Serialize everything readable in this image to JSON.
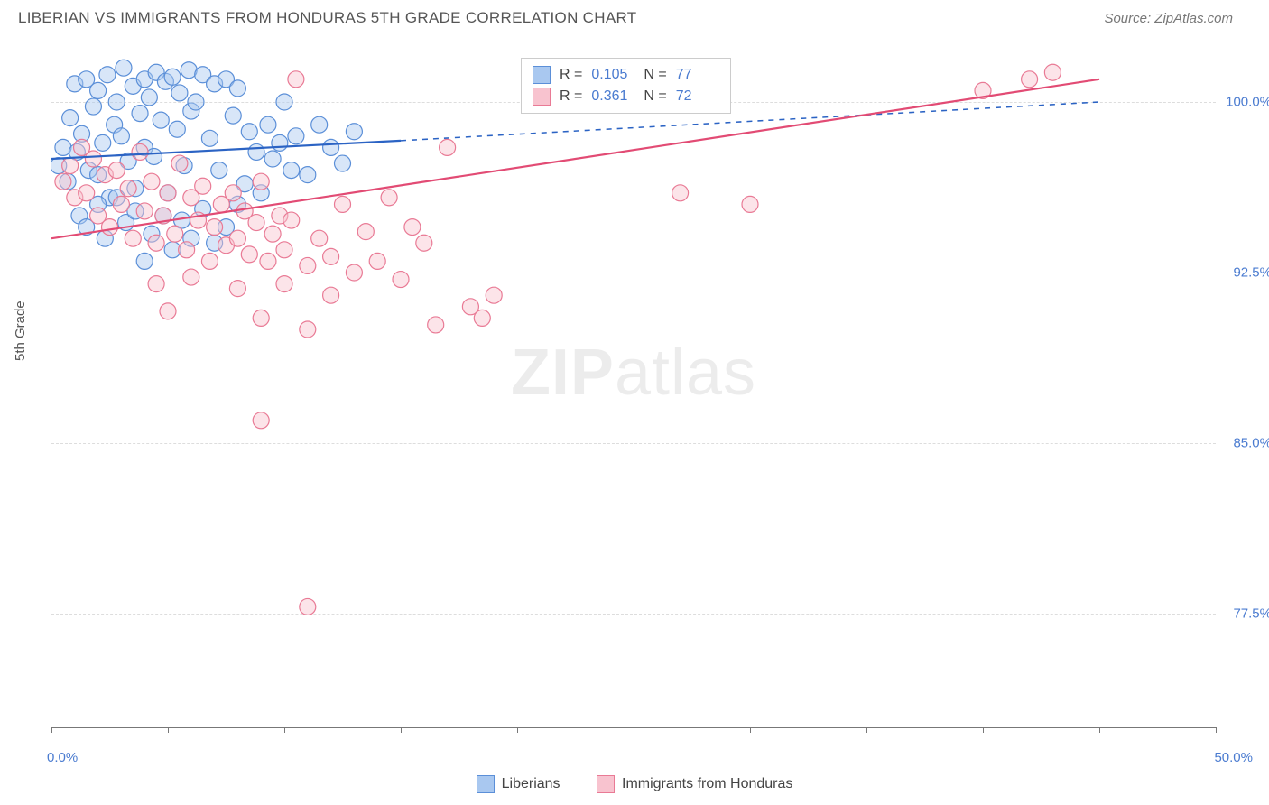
{
  "title": "LIBERIAN VS IMMIGRANTS FROM HONDURAS 5TH GRADE CORRELATION CHART",
  "source": "Source: ZipAtlas.com",
  "ylabel": "5th Grade",
  "watermark_a": "ZIP",
  "watermark_b": "atlas",
  "chart": {
    "type": "scatter",
    "xlim": [
      0,
      50
    ],
    "ylim": [
      72.5,
      102.5
    ],
    "x_ticks": [
      0,
      5,
      10,
      15,
      20,
      25,
      30,
      35,
      40,
      45,
      50
    ],
    "x_tick_labels": {
      "0": "0.0%",
      "50": "50.0%"
    },
    "y_gridlines": [
      77.5,
      85.0,
      92.5,
      100.0
    ],
    "y_tick_labels": [
      "77.5%",
      "85.0%",
      "92.5%",
      "100.0%"
    ],
    "background_color": "#ffffff",
    "grid_color": "#dddddd",
    "axis_color": "#777777",
    "tick_label_color": "#4a7bd0",
    "marker_radius": 9,
    "marker_opacity": 0.45,
    "series": [
      {
        "name": "Liberians",
        "color_fill": "#a9c8f0",
        "color_stroke": "#5b8fd8",
        "R": "0.105",
        "N": "77",
        "trend": {
          "x1": 0,
          "y1": 97.5,
          "x2": 15,
          "y2": 98.3,
          "dash_x2": 45,
          "dash_y2": 100.0,
          "stroke": "#2b63c4",
          "width": 2.2
        },
        "points": [
          [
            0.3,
            97.2
          ],
          [
            0.5,
            98.0
          ],
          [
            0.7,
            96.5
          ],
          [
            0.8,
            99.3
          ],
          [
            1.0,
            100.8
          ],
          [
            1.1,
            97.8
          ],
          [
            1.3,
            98.6
          ],
          [
            1.5,
            101.0
          ],
          [
            1.6,
            97.0
          ],
          [
            1.8,
            99.8
          ],
          [
            2.0,
            100.5
          ],
          [
            2.0,
            96.8
          ],
          [
            2.2,
            98.2
          ],
          [
            2.4,
            101.2
          ],
          [
            2.5,
            95.8
          ],
          [
            2.7,
            99.0
          ],
          [
            2.8,
            100.0
          ],
          [
            3.0,
            98.5
          ],
          [
            3.1,
            101.5
          ],
          [
            3.3,
            97.4
          ],
          [
            3.5,
            100.7
          ],
          [
            3.6,
            96.2
          ],
          [
            3.8,
            99.5
          ],
          [
            4.0,
            101.0
          ],
          [
            4.0,
            98.0
          ],
          [
            4.2,
            100.2
          ],
          [
            4.4,
            97.6
          ],
          [
            4.5,
            101.3
          ],
          [
            4.7,
            99.2
          ],
          [
            4.9,
            100.9
          ],
          [
            5.0,
            96.0
          ],
          [
            5.2,
            101.1
          ],
          [
            5.4,
            98.8
          ],
          [
            5.5,
            100.4
          ],
          [
            5.7,
            97.2
          ],
          [
            5.9,
            101.4
          ],
          [
            6.0,
            99.6
          ],
          [
            6.2,
            100.0
          ],
          [
            6.5,
            101.2
          ],
          [
            6.8,
            98.4
          ],
          [
            7.0,
            100.8
          ],
          [
            7.2,
            97.0
          ],
          [
            7.5,
            101.0
          ],
          [
            7.8,
            99.4
          ],
          [
            8.0,
            100.6
          ],
          [
            8.3,
            96.4
          ],
          [
            8.5,
            98.7
          ],
          [
            8.8,
            97.8
          ],
          [
            9.0,
            96.0
          ],
          [
            9.3,
            99.0
          ],
          [
            9.5,
            97.5
          ],
          [
            9.8,
            98.2
          ],
          [
            10.0,
            100.0
          ],
          [
            10.3,
            97.0
          ],
          [
            10.5,
            98.5
          ],
          [
            11.0,
            96.8
          ],
          [
            11.5,
            99.0
          ],
          [
            12.0,
            98.0
          ],
          [
            12.5,
            97.3
          ],
          [
            13.0,
            98.7
          ],
          [
            1.2,
            95.0
          ],
          [
            1.5,
            94.5
          ],
          [
            2.0,
            95.5
          ],
          [
            2.3,
            94.0
          ],
          [
            2.8,
            95.8
          ],
          [
            3.2,
            94.7
          ],
          [
            3.6,
            95.2
          ],
          [
            4.0,
            93.0
          ],
          [
            4.3,
            94.2
          ],
          [
            4.8,
            95.0
          ],
          [
            5.2,
            93.5
          ],
          [
            5.6,
            94.8
          ],
          [
            6.0,
            94.0
          ],
          [
            6.5,
            95.3
          ],
          [
            7.0,
            93.8
          ],
          [
            7.5,
            94.5
          ],
          [
            8.0,
            95.5
          ]
        ]
      },
      {
        "name": "Immigrants from Honduras",
        "color_fill": "#f8c3cf",
        "color_stroke": "#e97a95",
        "R": "0.361",
        "N": "72",
        "trend": {
          "x1": 0,
          "y1": 94.0,
          "x2": 45,
          "y2": 101.0,
          "stroke": "#e24b74",
          "width": 2.2
        },
        "points": [
          [
            0.5,
            96.5
          ],
          [
            0.8,
            97.2
          ],
          [
            1.0,
            95.8
          ],
          [
            1.3,
            98.0
          ],
          [
            1.5,
            96.0
          ],
          [
            1.8,
            97.5
          ],
          [
            2.0,
            95.0
          ],
          [
            2.3,
            96.8
          ],
          [
            2.5,
            94.5
          ],
          [
            2.8,
            97.0
          ],
          [
            3.0,
            95.5
          ],
          [
            3.3,
            96.2
          ],
          [
            3.5,
            94.0
          ],
          [
            3.8,
            97.8
          ],
          [
            4.0,
            95.2
          ],
          [
            4.3,
            96.5
          ],
          [
            4.5,
            93.8
          ],
          [
            4.8,
            95.0
          ],
          [
            5.0,
            96.0
          ],
          [
            5.3,
            94.2
          ],
          [
            5.5,
            97.3
          ],
          [
            5.8,
            93.5
          ],
          [
            6.0,
            95.8
          ],
          [
            6.3,
            94.8
          ],
          [
            6.5,
            96.3
          ],
          [
            6.8,
            93.0
          ],
          [
            7.0,
            94.5
          ],
          [
            7.3,
            95.5
          ],
          [
            7.5,
            93.7
          ],
          [
            7.8,
            96.0
          ],
          [
            8.0,
            94.0
          ],
          [
            8.3,
            95.2
          ],
          [
            8.5,
            93.3
          ],
          [
            8.8,
            94.7
          ],
          [
            9.0,
            96.5
          ],
          [
            9.3,
            93.0
          ],
          [
            9.5,
            94.2
          ],
          [
            9.8,
            95.0
          ],
          [
            10.0,
            93.5
          ],
          [
            10.3,
            94.8
          ],
          [
            10.5,
            101.0
          ],
          [
            11.0,
            92.8
          ],
          [
            11.5,
            94.0
          ],
          [
            12.0,
            93.2
          ],
          [
            12.5,
            95.5
          ],
          [
            13.0,
            92.5
          ],
          [
            13.5,
            94.3
          ],
          [
            14.0,
            93.0
          ],
          [
            14.5,
            95.8
          ],
          [
            15.0,
            92.2
          ],
          [
            15.5,
            94.5
          ],
          [
            16.0,
            93.8
          ],
          [
            17.0,
            98.0
          ],
          [
            18.0,
            91.0
          ],
          [
            19.0,
            91.5
          ],
          [
            4.5,
            92.0
          ],
          [
            6.0,
            92.3
          ],
          [
            8.0,
            91.8
          ],
          [
            10.0,
            92.0
          ],
          [
            12.0,
            91.5
          ],
          [
            5.0,
            90.8
          ],
          [
            9.0,
            90.5
          ],
          [
            11.0,
            90.0
          ],
          [
            16.5,
            90.2
          ],
          [
            18.5,
            90.5
          ],
          [
            27.0,
            96.0
          ],
          [
            30.0,
            95.5
          ],
          [
            9.0,
            86.0
          ],
          [
            11.0,
            77.8
          ],
          [
            42.0,
            101.0
          ],
          [
            43.0,
            101.3
          ],
          [
            40.0,
            100.5
          ]
        ]
      }
    ]
  },
  "legend_top_labels": {
    "R": "R =",
    "N": "N ="
  },
  "legend_bottom": [
    "Liberians",
    "Immigrants from Honduras"
  ]
}
